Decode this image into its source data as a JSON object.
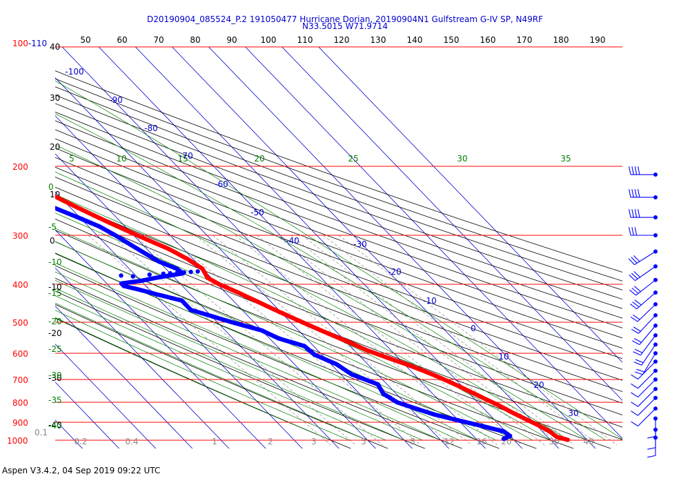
{
  "title_line1": "D20190904_085524_P.2 191050477 Hurricane Dorian, 20190904N1 Gulfstream G-IV SP, N49RF",
  "title_line2": "N33.5015 W71.9714",
  "footer": "Aspen V3.4.2, 04 Sep 2019  09:22 UTC",
  "colors": {
    "pressure_lines": "#ff0000",
    "temperature_profile": "#ff0000",
    "dewpoint_profile": "#0000ff",
    "isotherms": "#0000cc",
    "dry_adiabats": "#000000",
    "moist_adiabats": "#008000",
    "mixing_ratio": "#888888",
    "wind_barbs": "#0000ff"
  },
  "chart_data": {
    "type": "skew-t",
    "pressure_levels": [
      "100-110",
      "200",
      "300",
      "400",
      "500",
      "600",
      "700",
      "800",
      "900",
      "1000"
    ],
    "top_scale": [
      "50",
      "60",
      "70",
      "80",
      "90",
      "100",
      "110",
      "120",
      "130",
      "140",
      "150",
      "160",
      "170",
      "180",
      "190"
    ],
    "left_dry_labels": [
      "40",
      "30",
      "20",
      "10",
      "0",
      "-10",
      "-20",
      "-30",
      "-40"
    ],
    "isotherm_labels": [
      {
        "t": -100,
        "text": "-100"
      },
      {
        "t": -90,
        "text": "-90"
      },
      {
        "t": -80,
        "text": "-80"
      },
      {
        "t": -70,
        "text": "-70"
      },
      {
        "t": -60,
        "text": "-60"
      },
      {
        "t": -50,
        "text": "-50"
      },
      {
        "t": -40,
        "text": "-40"
      },
      {
        "t": -30,
        "text": "-30"
      },
      {
        "t": -20,
        "text": "-20"
      },
      {
        "t": -10,
        "text": "-10"
      },
      {
        "t": 0,
        "text": "0"
      },
      {
        "t": 10,
        "text": "10"
      },
      {
        "t": 20,
        "text": "20"
      },
      {
        "t": 30,
        "text": "30"
      }
    ],
    "moist_top_labels": [
      "5",
      "10",
      "15",
      "20",
      "25",
      "30",
      "35"
    ],
    "moist_left_labels": [
      "0",
      "-5",
      "-10",
      "-15",
      "-20",
      "-25",
      "-30",
      "-35",
      "-40"
    ],
    "mixing_ratio_labels": [
      "0.1",
      "0.2",
      "0.4",
      "1",
      "2",
      "3",
      "5",
      "8",
      "12",
      "16",
      "20",
      "30",
      "40"
    ],
    "temperature_profile": [
      [
        -55,
        190
      ],
      [
        -56.5,
        205
      ],
      [
        -55,
        220
      ],
      [
        -52,
        235
      ],
      [
        -49,
        250
      ],
      [
        -46,
        265
      ],
      [
        -43,
        280
      ],
      [
        -40,
        295
      ],
      [
        -37,
        310
      ],
      [
        -34,
        325
      ],
      [
        -31.5,
        345
      ],
      [
        -30,
        365
      ],
      [
        -31,
        385
      ],
      [
        -29.5,
        400
      ],
      [
        -26.5,
        420
      ],
      [
        -24,
        440
      ],
      [
        -21,
        465
      ],
      [
        -18,
        490
      ],
      [
        -15,
        515
      ],
      [
        -12,
        540
      ],
      [
        -9,
        565
      ],
      [
        -6.5,
        590
      ],
      [
        -3,
        615
      ],
      [
        0.5,
        640
      ],
      [
        3.5,
        665
      ],
      [
        6,
        690
      ],
      [
        8.5,
        720
      ],
      [
        11,
        755
      ],
      [
        13,
        785
      ],
      [
        15,
        815
      ],
      [
        16.5,
        845
      ],
      [
        18.5,
        880
      ],
      [
        20.5,
        915
      ],
      [
        22,
        950
      ],
      [
        22.5,
        980
      ],
      [
        25,
        1000
      ]
    ],
    "dewpoint_profile": [
      [
        -66,
        210
      ],
      [
        -62,
        225
      ],
      [
        -58,
        240
      ],
      [
        -54.5,
        255
      ],
      [
        -50.5,
        270
      ],
      [
        -47,
        285
      ],
      [
        -45,
        300
      ],
      [
        -43.5,
        315
      ],
      [
        -42,
        330
      ],
      [
        -40,
        350
      ],
      [
        -37,
        365
      ],
      [
        -36.5,
        375
      ],
      [
        -45,
        385
      ],
      [
        -50,
        392
      ],
      [
        -56,
        398
      ],
      [
        -56,
        404
      ],
      [
        -53,
        412
      ],
      [
        -49,
        425
      ],
      [
        -44,
        440
      ],
      [
        -44,
        452
      ],
      [
        -44,
        465
      ],
      [
        -36,
        500
      ],
      [
        -30,
        525
      ],
      [
        -27.5,
        550
      ],
      [
        -22.5,
        575
      ],
      [
        -22,
        605
      ],
      [
        -18.5,
        640
      ],
      [
        -17,
        680
      ],
      [
        -12.5,
        720
      ],
      [
        -13.5,
        760
      ],
      [
        -12,
        800
      ],
      [
        -8.5,
        830
      ],
      [
        -5,
        860
      ],
      [
        0,
        890
      ],
      [
        5,
        920
      ],
      [
        9.5,
        950
      ],
      [
        10,
        975
      ],
      [
        7,
        995
      ]
    ],
    "dewpoint_outliers": [
      [
        -54,
        380
      ],
      [
        -51,
        382
      ],
      [
        -46,
        378
      ],
      [
        -42,
        376
      ],
      [
        -40,
        375
      ],
      [
        -38,
        374
      ],
      [
        -36,
        373
      ],
      [
        -34,
        372
      ],
      [
        -32,
        371
      ]
    ],
    "top_temperature_point": [
      -55,
      178
    ],
    "wind_barb_levels": [
      210,
      240,
      270,
      300,
      330,
      360,
      390,
      420,
      450,
      480,
      510,
      540,
      570,
      600,
      630,
      665,
      700,
      740,
      780,
      830,
      880,
      940,
      985
    ]
  }
}
